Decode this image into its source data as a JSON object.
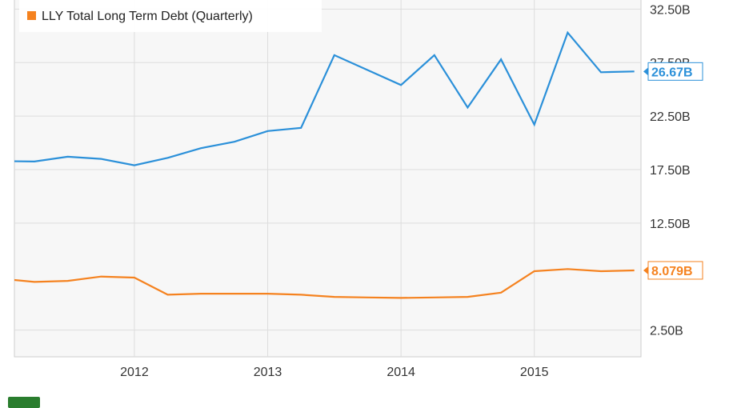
{
  "chart_data": {
    "type": "line",
    "x_tick_labels": [
      "2012",
      "2013",
      "2014",
      "2015"
    ],
    "y_tick_labels": [
      "2.50B",
      "12.50B",
      "17.50B",
      "22.50B",
      "27.50B",
      "32.50B"
    ],
    "ylim": [
      0,
      33.5
    ],
    "xlim": [
      2011.1,
      2015.8
    ],
    "grid": true,
    "legend_position": "top-left",
    "series": [
      {
        "name": "LLY Total Long Term Debt (Quarterly)",
        "color": "#f5821f",
        "end_label": "8.079B",
        "points": [
          {
            "x": 2011.0,
            "y": 7.3
          },
          {
            "x": 2011.25,
            "y": 7.0
          },
          {
            "x": 2011.5,
            "y": 7.1
          },
          {
            "x": 2011.75,
            "y": 7.5
          },
          {
            "x": 2012.0,
            "y": 7.4
          },
          {
            "x": 2012.25,
            "y": 5.8
          },
          {
            "x": 2012.5,
            "y": 5.9
          },
          {
            "x": 2012.75,
            "y": 5.9
          },
          {
            "x": 2013.0,
            "y": 5.9
          },
          {
            "x": 2013.25,
            "y": 5.8
          },
          {
            "x": 2013.5,
            "y": 5.6
          },
          {
            "x": 2013.75,
            "y": 5.55
          },
          {
            "x": 2014.0,
            "y": 5.5
          },
          {
            "x": 2014.25,
            "y": 5.55
          },
          {
            "x": 2014.5,
            "y": 5.6
          },
          {
            "x": 2014.75,
            "y": 6.0
          },
          {
            "x": 2015.0,
            "y": 8.0
          },
          {
            "x": 2015.25,
            "y": 8.2
          },
          {
            "x": 2015.5,
            "y": 8.0
          },
          {
            "x": 2015.75,
            "y": 8.079
          }
        ]
      },
      {
        "name": "",
        "color": "#2b90d9",
        "end_label": "26.67B",
        "points": [
          {
            "x": 2011.0,
            "y": 18.3
          },
          {
            "x": 2011.25,
            "y": 18.25
          },
          {
            "x": 2011.5,
            "y": 18.7
          },
          {
            "x": 2011.75,
            "y": 18.5
          },
          {
            "x": 2012.0,
            "y": 17.9
          },
          {
            "x": 2012.25,
            "y": 18.6
          },
          {
            "x": 2012.5,
            "y": 19.5
          },
          {
            "x": 2012.75,
            "y": 20.1
          },
          {
            "x": 2013.0,
            "y": 21.1
          },
          {
            "x": 2013.25,
            "y": 21.4
          },
          {
            "x": 2013.5,
            "y": 28.2
          },
          {
            "x": 2013.75,
            "y": 26.8
          },
          {
            "x": 2014.0,
            "y": 25.4
          },
          {
            "x": 2014.25,
            "y": 28.2
          },
          {
            "x": 2014.5,
            "y": 23.3
          },
          {
            "x": 2014.75,
            "y": 27.8
          },
          {
            "x": 2015.0,
            "y": 21.7
          },
          {
            "x": 2015.25,
            "y": 30.3
          },
          {
            "x": 2015.5,
            "y": 26.6
          },
          {
            "x": 2015.75,
            "y": 26.67
          }
        ]
      }
    ]
  }
}
